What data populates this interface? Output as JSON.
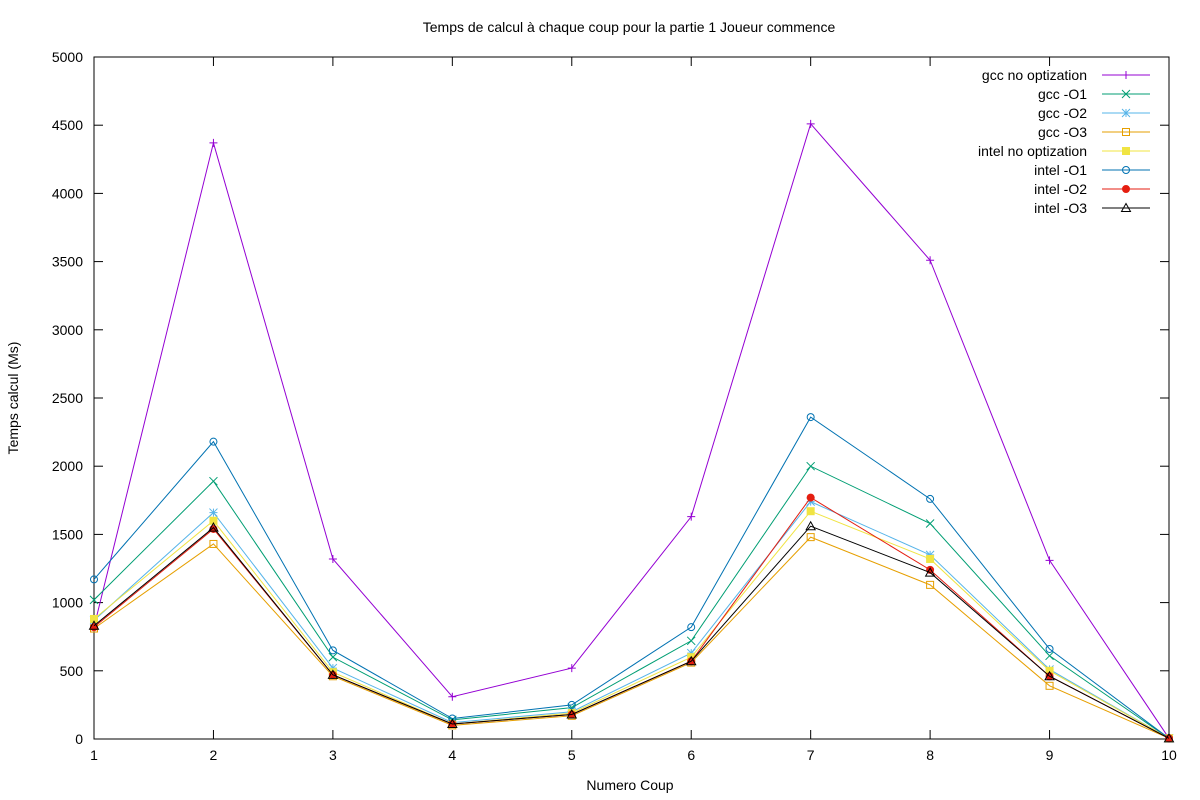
{
  "chart_data": {
    "type": "line",
    "title": "Temps de calcul à chaque coup pour la partie 1 Joueur commence",
    "xlabel": "Numero Coup",
    "ylabel": "Temps calcul (Ms)",
    "x": [
      1,
      2,
      3,
      4,
      5,
      6,
      7,
      8,
      9,
      10
    ],
    "xlim": [
      1,
      10
    ],
    "ylim": [
      0,
      5000
    ],
    "xticks": [
      "1",
      "2",
      "3",
      "4",
      "5",
      "6",
      "7",
      "8",
      "9",
      "10"
    ],
    "yticks": [
      "0",
      "500",
      "1000",
      "1500",
      "2000",
      "2500",
      "3000",
      "3500",
      "4000",
      "4500",
      "5000"
    ],
    "grid": false,
    "legend_position": "top-right",
    "series": [
      {
        "name": "gcc no optization",
        "color": "#9400d3",
        "marker": "plus",
        "values": [
          820,
          4370,
          1320,
          310,
          520,
          1630,
          4510,
          3510,
          1310,
          5
        ]
      },
      {
        "name": "gcc -O1",
        "color": "#009e73",
        "marker": "cross",
        "values": [
          1020,
          1890,
          600,
          140,
          230,
          720,
          2000,
          1580,
          610,
          5
        ]
      },
      {
        "name": "gcc -O2",
        "color": "#56b4e9",
        "marker": "star",
        "values": [
          870,
          1660,
          520,
          120,
          200,
          630,
          1740,
          1350,
          510,
          5
        ]
      },
      {
        "name": "gcc -O3",
        "color": "#e69f00",
        "marker": "square",
        "values": [
          810,
          1430,
          460,
          100,
          170,
          560,
          1480,
          1130,
          390,
          5
        ]
      },
      {
        "name": "intel no optization",
        "color": "#f0e442",
        "marker": "filled-square",
        "values": [
          880,
          1600,
          490,
          110,
          190,
          600,
          1670,
          1320,
          500,
          5
        ]
      },
      {
        "name": "intel -O1",
        "color": "#0072b2",
        "marker": "circle",
        "values": [
          1170,
          2180,
          650,
          150,
          250,
          820,
          2360,
          1760,
          660,
          5
        ]
      },
      {
        "name": "intel -O2",
        "color": "#e51e10",
        "marker": "filled-circle",
        "values": [
          820,
          1540,
          470,
          110,
          180,
          570,
          1770,
          1240,
          460,
          5
        ]
      },
      {
        "name": "intel -O3",
        "color": "#000000",
        "marker": "triangle",
        "values": [
          830,
          1550,
          470,
          110,
          180,
          570,
          1560,
          1220,
          460,
          5
        ]
      }
    ]
  }
}
